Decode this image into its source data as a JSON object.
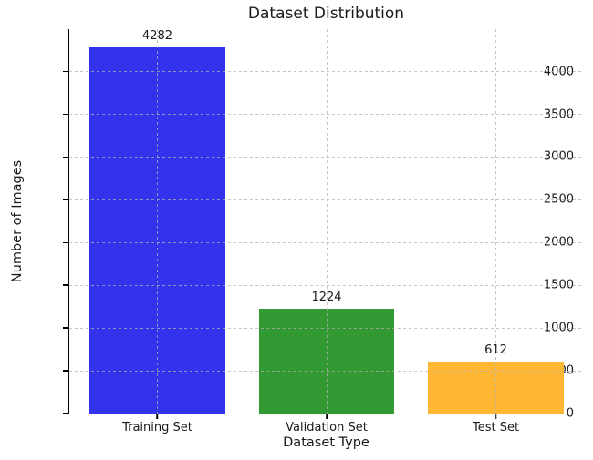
{
  "chart_data": {
    "type": "bar",
    "title": "Dataset Distribution",
    "xlabel": "Dataset Type",
    "ylabel": "Number of Images",
    "categories": [
      "Training Set",
      "Validation Set",
      "Test Set"
    ],
    "values": [
      4282,
      1224,
      612
    ],
    "bar_colors": [
      "#3333ee",
      "#339933",
      "#ffb733"
    ],
    "value_labels": [
      "4282",
      "1224",
      "612"
    ],
    "yticks": [
      0,
      500,
      1000,
      1500,
      2000,
      2500,
      3000,
      3500,
      4000
    ],
    "ytick_labels": [
      "0",
      "500",
      "1000",
      "1500",
      "2000",
      "2500",
      "3000",
      "3500",
      "4000"
    ],
    "ylim": [
      0,
      4496
    ],
    "xlim": [
      -0.52,
      2.52
    ],
    "bar_width_units": 0.8,
    "grid": "both-axes, dashed, drawn above bars",
    "legend": "none",
    "grid_color": "#b0b0b0",
    "spine_color": "#000000",
    "text_color": "#1a1a1a",
    "background_color": "#ffffff"
  }
}
